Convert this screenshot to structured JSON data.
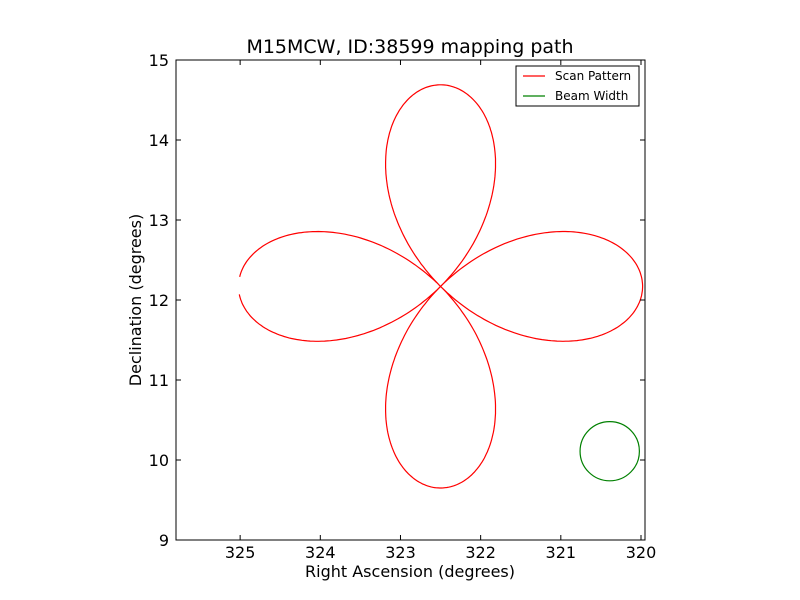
{
  "chart_data": {
    "type": "line",
    "title": "M15MCW, ID:38599 mapping path",
    "xlabel": "Right Ascension (degrees)",
    "ylabel": "Declination (degrees)",
    "xlim": [
      325.8,
      319.95
    ],
    "ylim": [
      9,
      15
    ],
    "x_inverted": true,
    "grid": false,
    "legend_position": "top-right",
    "xticks": [
      {
        "value": 325,
        "label": "325"
      },
      {
        "value": 324,
        "label": "324"
      },
      {
        "value": 323,
        "label": "323"
      },
      {
        "value": 322,
        "label": "322"
      },
      {
        "value": 321,
        "label": "321"
      },
      {
        "value": 320,
        "label": "320"
      }
    ],
    "yticks": [
      {
        "value": 9,
        "label": "9"
      },
      {
        "value": 10,
        "label": "10"
      },
      {
        "value": 11,
        "label": "11"
      },
      {
        "value": 12,
        "label": "12"
      },
      {
        "value": 13,
        "label": "13"
      },
      {
        "value": 14,
        "label": "14"
      },
      {
        "value": 15,
        "label": "15"
      }
    ],
    "series": [
      {
        "name": "Scan Pattern",
        "color": "#ff0000",
        "shape": "four-petal rose",
        "center": [
          322.5,
          12.17
        ],
        "petal_extent_deg": 2.52,
        "open_end_points": [
          [
            325.07,
            12.18
          ],
          [
            325.0,
            11.94
          ]
        ]
      },
      {
        "name": "Beam Width",
        "color": "#008000",
        "shape": "circle",
        "center": [
          320.39,
          10.11
        ],
        "radius_deg": 0.37
      }
    ]
  }
}
